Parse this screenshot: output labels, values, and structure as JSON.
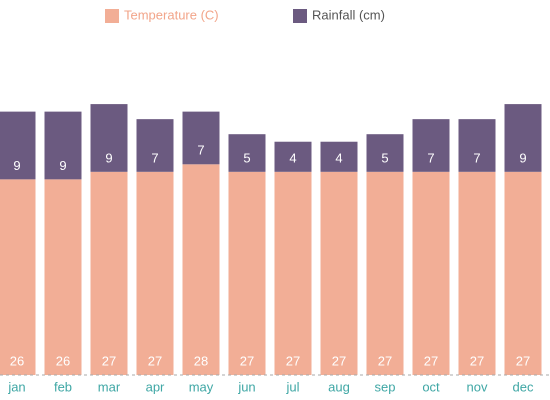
{
  "chart_data": {
    "type": "stacked-bar",
    "categories": [
      "jan",
      "feb",
      "mar",
      "apr",
      "may",
      "jun",
      "jul",
      "aug",
      "sep",
      "oct",
      "nov",
      "dec"
    ],
    "series": [
      {
        "name": "Temperature (C)",
        "color": "#f2ae96",
        "values": [
          26,
          26,
          27,
          27,
          28,
          27,
          27,
          27,
          27,
          27,
          27,
          27
        ]
      },
      {
        "name": "Rainfall (cm)",
        "color": "#6b5a80",
        "values": [
          9,
          9,
          9,
          7,
          7,
          5,
          4,
          4,
          5,
          7,
          7,
          9
        ]
      }
    ],
    "ylim": [
      0,
      40
    ],
    "legend": "top"
  }
}
